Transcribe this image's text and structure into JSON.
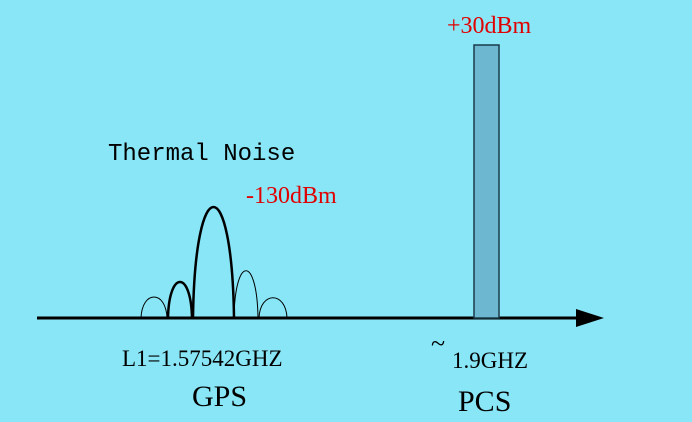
{
  "labels": {
    "pcs_power": "+30dBm",
    "noise_title": "Thermal Noise",
    "noise_power": "-130dBm",
    "gps_freq": "L1=1.57542GHZ",
    "gps_name": "GPS",
    "pcs_freq_prefix": "~",
    "pcs_freq": "1.9GHZ",
    "pcs_name": "PCS"
  }
}
